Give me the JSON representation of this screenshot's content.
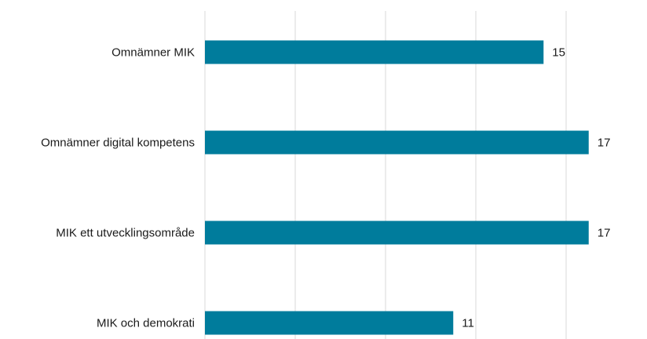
{
  "chart_data": {
    "type": "bar",
    "orientation": "horizontal",
    "categories": [
      "Omnämner MIK",
      "Omnämner digital kompetens",
      "MIK ett utvecklingsområde",
      "MIK och demokrati"
    ],
    "values": [
      15,
      17,
      17,
      11
    ],
    "data_labels": [
      "15",
      "17",
      "17",
      "11"
    ],
    "xlim": [
      0,
      20
    ],
    "x_gridlines": [
      0,
      4,
      8,
      12,
      16,
      20
    ],
    "grid": true,
    "legend": "none",
    "title": "",
    "xlabel": "",
    "ylabel": ""
  },
  "colors": {
    "bar": "#007c9c",
    "grid": "#d9d9d9",
    "text": "#1a1a1a"
  }
}
